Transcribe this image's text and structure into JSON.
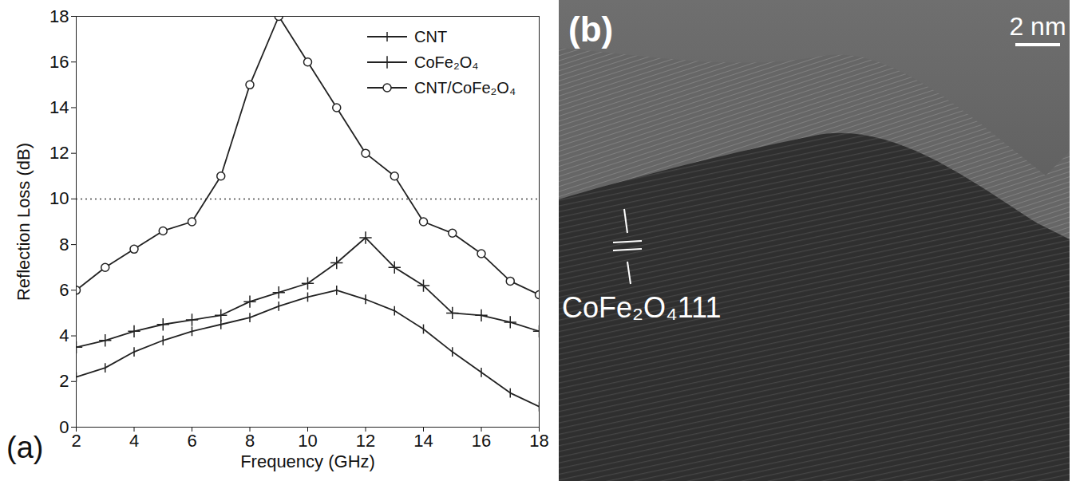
{
  "chart_data": {
    "type": "line",
    "panel_label": "(a)",
    "x_label": "Frequency (GHz)",
    "y_label": "Reflection Loss (dB)",
    "x": [
      2,
      3,
      4,
      5,
      6,
      7,
      8,
      9,
      10,
      11,
      12,
      13,
      14,
      15,
      16,
      17,
      18
    ],
    "series": [
      {
        "name": "CNT",
        "color": "#222222",
        "marker": "tick",
        "line_style": "solid",
        "values": [
          2.2,
          2.6,
          3.3,
          3.8,
          4.2,
          4.5,
          4.8,
          5.3,
          5.7,
          6.0,
          5.6,
          5.1,
          4.3,
          3.3,
          2.4,
          1.5,
          0.9
        ]
      },
      {
        "name": "CoFe₂O₄",
        "color": "#222222",
        "marker": "plus",
        "line_style": "solid",
        "values": [
          3.5,
          3.8,
          4.2,
          4.5,
          4.7,
          4.9,
          5.5,
          5.9,
          6.3,
          7.2,
          8.3,
          7.0,
          6.2,
          5.0,
          4.9,
          4.6,
          4.2
        ]
      },
      {
        "name": "CNT/CoFe₂O₄",
        "color": "#222222",
        "marker": "circle",
        "line_style": "solid",
        "values": [
          6.0,
          7.0,
          7.8,
          8.6,
          9.0,
          11.0,
          15.0,
          18.0,
          16.0,
          14.0,
          12.0,
          11.0,
          9.0,
          8.5,
          7.6,
          6.4,
          5.8
        ]
      }
    ],
    "threshold": 10,
    "xlim": [
      2,
      18
    ],
    "xticks": [
      2,
      4,
      6,
      8,
      10,
      12,
      14,
      16,
      18
    ],
    "ylim": [
      0,
      18
    ],
    "yticks": [
      0,
      2,
      4,
      6,
      8,
      10,
      12,
      14,
      16,
      18
    ],
    "grid": false,
    "legend": "top-right"
  },
  "panel_b": {
    "panel_label": "(b)",
    "scale_bar": "2 nm",
    "annotation": "CoFe₂O₄111"
  }
}
